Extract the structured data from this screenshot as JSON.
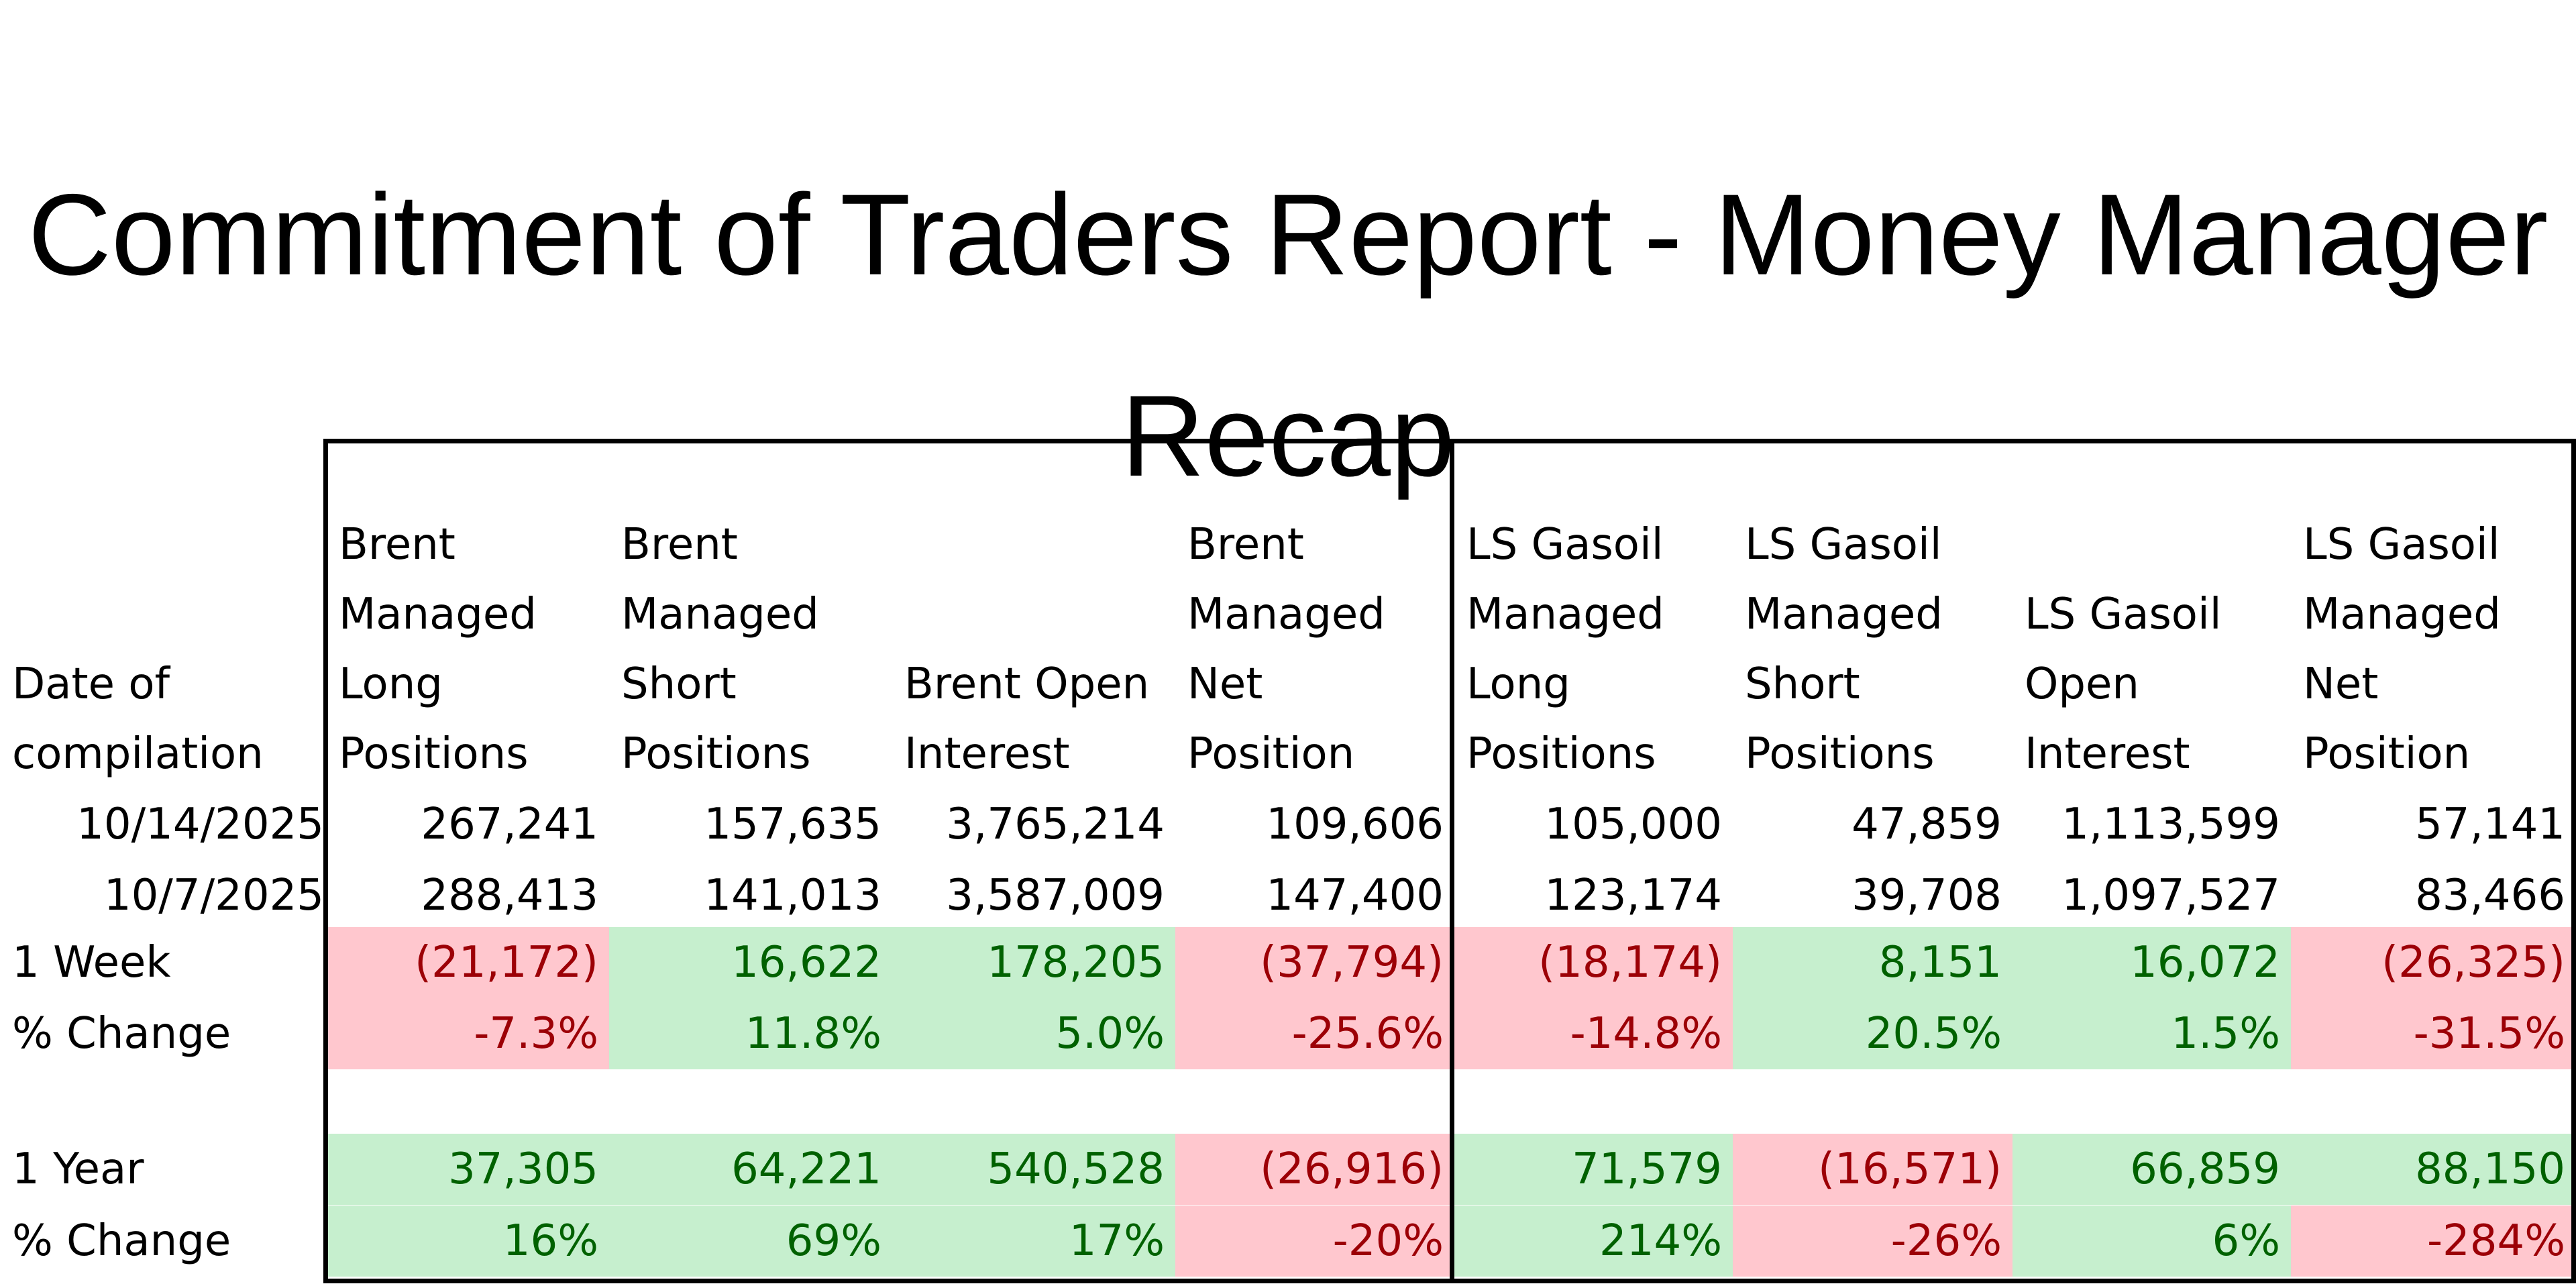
{
  "title": "Commitment of Traders Report - Money Manager Recap",
  "columns": [
    {
      "header": "Date of compilation"
    },
    {
      "header": "Brent Managed Long Positions"
    },
    {
      "header": "Brent Managed Short Positions"
    },
    {
      "header": "Brent Open Interest"
    },
    {
      "header": "Brent Managed Net Position"
    },
    {
      "header": "LS Gasoil Managed Long Positions"
    },
    {
      "header": "LS Gasoil Managed Short Positions"
    },
    {
      "header": "LS Gasoil Open Interest"
    },
    {
      "header": "LS Gasoil Managed Net Position"
    }
  ],
  "rows": [
    {
      "label": "10/14/2025",
      "values": [
        "267,241",
        "157,635",
        "3,765,214",
        "109,606",
        "105,000",
        "47,859",
        "1,113,599",
        "57,141"
      ]
    },
    {
      "label": "10/7/2025",
      "values": [
        "288,413",
        "141,013",
        "3,587,009",
        "147,400",
        "123,174",
        "39,708",
        "1,097,527",
        "83,466"
      ]
    },
    {
      "label": "1 Week",
      "values": [
        "(21,172)",
        "16,622",
        "178,205",
        "(37,794)",
        "(18,174)",
        "8,151",
        "16,072",
        "(26,325)"
      ],
      "status": [
        "neg",
        "pos",
        "pos",
        "neg",
        "neg",
        "pos",
        "pos",
        "neg"
      ]
    },
    {
      "label": "% Change",
      "values": [
        "-7.3%",
        "11.8%",
        "5.0%",
        "-25.6%",
        "-14.8%",
        "20.5%",
        "1.5%",
        "-31.5%"
      ],
      "status": [
        "neg",
        "pos",
        "pos",
        "neg",
        "neg",
        "pos",
        "pos",
        "neg"
      ]
    },
    {
      "label": "1 Year",
      "values": [
        "37,305",
        "64,221",
        "540,528",
        "(26,916)",
        "71,579",
        "(16,571)",
        "66,859",
        "88,150"
      ],
      "status": [
        "pos",
        "pos",
        "pos",
        "neg",
        "pos",
        "neg",
        "pos",
        "pos"
      ]
    },
    {
      "label": "% Change",
      "values": [
        "16%",
        "69%",
        "17%",
        "-20%",
        "214%",
        "-26%",
        "6%",
        "-284%"
      ],
      "status": [
        "pos",
        "pos",
        "pos",
        "neg",
        "pos",
        "neg",
        "pos",
        "neg"
      ]
    }
  ],
  "colors": {
    "positive_fill": "#c6efce",
    "positive_text": "#006100",
    "negative_fill": "#ffc7ce",
    "negative_text": "#9c0006"
  }
}
